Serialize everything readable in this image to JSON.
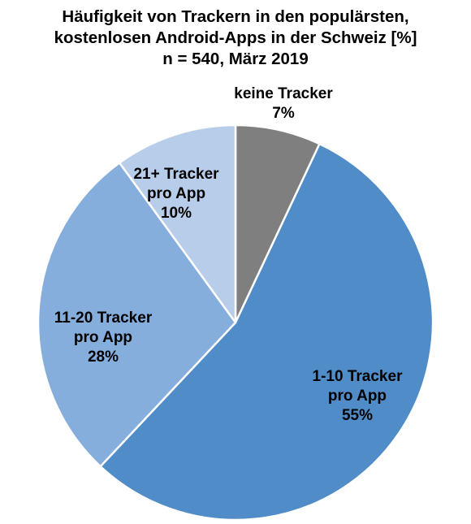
{
  "title": {
    "line1": "Häufigkeit von Trackern in den populärsten,",
    "line2": "kostenlosen Android-Apps in der Schweiz [%]",
    "line3": "n = 540, März 2019"
  },
  "chart_data": {
    "type": "pie",
    "title": "Häufigkeit von Trackern in den populärsten, kostenlosen Android-Apps in der Schweiz [%] n = 540, März 2019",
    "unit": "%",
    "start_angle_deg": 0,
    "direction": "clockwise",
    "slices": [
      {
        "category": "keine Tracker",
        "label_lines": [
          "keine Tracker",
          "7%"
        ],
        "value": 7,
        "color": "#7f7f7f"
      },
      {
        "category": "1-10 Tracker pro App",
        "label_lines": [
          "1-10 Tracker",
          "pro App",
          "55%"
        ],
        "value": 55,
        "color": "#4f8cc8"
      },
      {
        "category": "11-20 Tracker pro App",
        "label_lines": [
          "11-20 Tracker",
          "pro App",
          "28%"
        ],
        "value": 28,
        "color": "#85aedc"
      },
      {
        "category": "21+ Tracker pro App",
        "label_lines": [
          "21+ Tracker",
          "pro App",
          "10%"
        ],
        "value": 10,
        "color": "#b8cde9"
      }
    ],
    "legend": "none",
    "stroke_color": "#ffffff"
  }
}
